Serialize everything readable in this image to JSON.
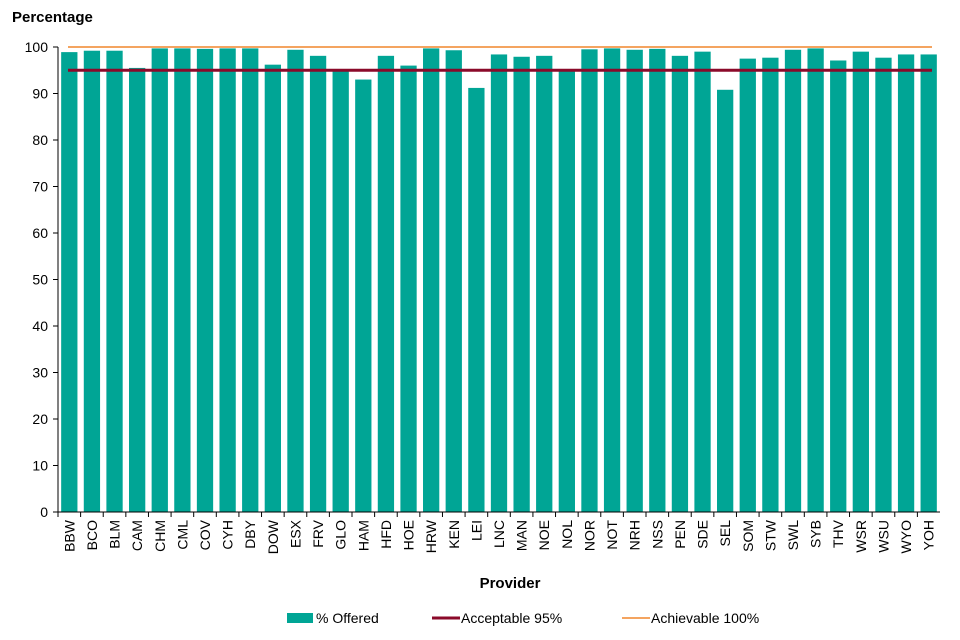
{
  "chart_data": {
    "type": "bar",
    "ylabel": "Percentage",
    "xlabel": "Provider",
    "ylim": [
      0,
      100
    ],
    "yticks": [
      0,
      10,
      20,
      30,
      40,
      50,
      60,
      70,
      80,
      90,
      100
    ],
    "categories": [
      "BBW",
      "BCO",
      "BLM",
      "CAM",
      "CHM",
      "CML",
      "COV",
      "CYH",
      "DBY",
      "DOW",
      "ESX",
      "FRV",
      "GLO",
      "HAM",
      "HFD",
      "HOE",
      "HRW",
      "KEN",
      "LEI",
      "LNC",
      "MAN",
      "NOE",
      "NOL",
      "NOR",
      "NOT",
      "NRH",
      "NSS",
      "PEN",
      "SDE",
      "SEL",
      "SOM",
      "STW",
      "SWL",
      "SYB",
      "THV",
      "WSR",
      "WSU",
      "WYO",
      "YOH"
    ],
    "series": [
      {
        "name": "% Offered",
        "type": "bar",
        "color": "#00A595",
        "values": [
          98.9,
          99.2,
          99.2,
          95.5,
          99.7,
          99.7,
          99.6,
          99.7,
          99.7,
          96.2,
          99.4,
          98.1,
          95.0,
          93.0,
          98.1,
          96.0,
          99.7,
          99.3,
          91.2,
          98.4,
          97.9,
          98.1,
          95.0,
          99.5,
          99.7,
          99.4,
          99.6,
          98.1,
          99.0,
          90.8,
          97.5,
          97.7,
          99.4,
          99.7,
          97.1,
          99.0,
          97.7,
          98.4,
          98.4
        ]
      },
      {
        "name": "Acceptable 95%",
        "type": "line",
        "color": "#8B0A2A",
        "value": 95
      },
      {
        "name": "Achievable 100%",
        "type": "line",
        "color": "#F4A460",
        "value": 100
      }
    ],
    "grid": false,
    "legend_position": "bottom"
  }
}
